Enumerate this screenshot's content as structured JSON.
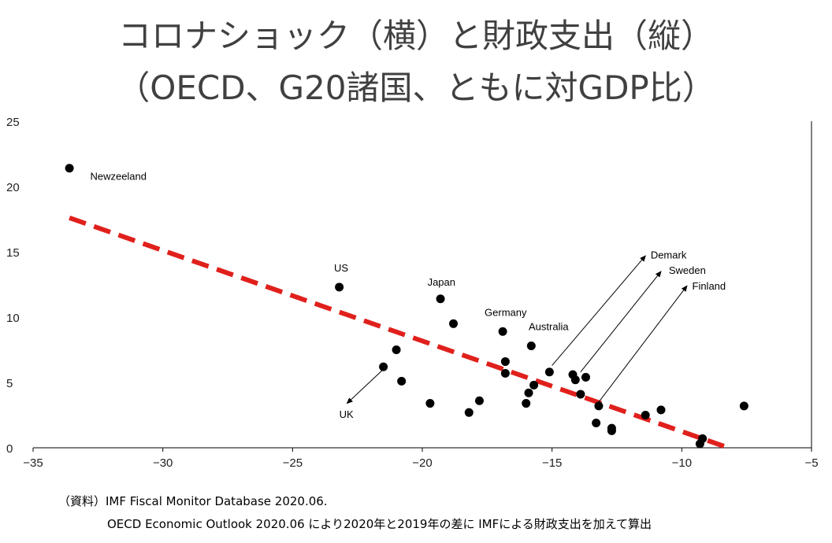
{
  "title": {
    "line1": "コロナショック（横）と財政支出（縦）",
    "line2": "（OECD、G20諸国、ともに対GDP比）"
  },
  "notes": {
    "line1": "（資料）IMF Fiscal Monitor Database 2020.06.",
    "line2": "OECD Economic Outlook 2020.06 により2020年と2019年の差に IMFによる財政支出を加えて算出"
  },
  "chart_data": {
    "type": "scatter",
    "xlim": [
      -35,
      -5
    ],
    "ylim": [
      0,
      25
    ],
    "x_ticks": [
      -35,
      -30,
      -25,
      -20,
      -15,
      -10,
      -5
    ],
    "y_ticks": [
      0,
      5,
      10,
      15,
      20,
      25
    ],
    "grid": false,
    "marker_color": "#000000",
    "trendline": {
      "style": "dashed",
      "color": "#e0201c",
      "start": [
        -33.6,
        17.6
      ],
      "end": [
        -8.2,
        0.0
      ]
    },
    "points": [
      {
        "x": -33.6,
        "y": 21.4
      },
      {
        "x": -23.2,
        "y": 12.3
      },
      {
        "x": -19.3,
        "y": 11.4
      },
      {
        "x": -18.8,
        "y": 9.5
      },
      {
        "x": -16.9,
        "y": 8.9
      },
      {
        "x": -15.8,
        "y": 7.8
      },
      {
        "x": -21.0,
        "y": 7.5
      },
      {
        "x": -21.5,
        "y": 6.2
      },
      {
        "x": -16.8,
        "y": 6.6
      },
      {
        "x": -16.8,
        "y": 5.7
      },
      {
        "x": -15.1,
        "y": 5.8
      },
      {
        "x": -20.8,
        "y": 5.1
      },
      {
        "x": -15.7,
        "y": 4.8
      },
      {
        "x": -15.9,
        "y": 4.2
      },
      {
        "x": -14.2,
        "y": 5.6
      },
      {
        "x": -14.1,
        "y": 5.2
      },
      {
        "x": -13.7,
        "y": 5.4
      },
      {
        "x": -13.9,
        "y": 4.1
      },
      {
        "x": -19.7,
        "y": 3.4
      },
      {
        "x": -17.8,
        "y": 3.6
      },
      {
        "x": -18.2,
        "y": 2.7
      },
      {
        "x": -16.0,
        "y": 3.4
      },
      {
        "x": -13.2,
        "y": 3.2
      },
      {
        "x": -11.4,
        "y": 2.5
      },
      {
        "x": -10.8,
        "y": 2.9
      },
      {
        "x": -13.3,
        "y": 1.9
      },
      {
        "x": -12.7,
        "y": 1.5
      },
      {
        "x": -12.7,
        "y": 1.3
      },
      {
        "x": -9.2,
        "y": 0.7
      },
      {
        "x": -9.3,
        "y": 0.3
      },
      {
        "x": -7.6,
        "y": 3.2
      }
    ],
    "annotations": [
      {
        "text": "Newzeeland",
        "x": -32.8,
        "y": 20.8
      },
      {
        "text": "US",
        "x": -23.4,
        "y": 13.8
      },
      {
        "text": "Japan",
        "x": -19.8,
        "y": 12.7
      },
      {
        "text": "Germany",
        "x": -17.6,
        "y": 10.4
      },
      {
        "text": "Australia",
        "x": -15.9,
        "y": 9.3
      },
      {
        "text": "UK",
        "x": -23.2,
        "y": 2.6
      },
      {
        "text": "Demark",
        "x": -11.2,
        "y": 14.8
      },
      {
        "text": "Sweden",
        "x": -10.5,
        "y": 13.6
      },
      {
        "text": "Finland",
        "x": -9.6,
        "y": 12.4
      }
    ],
    "arrows": [
      {
        "from": [
          -21.4,
          6.2
        ],
        "to": [
          -22.9,
          3.4
        ]
      },
      {
        "from": [
          -15.0,
          6.3
        ],
        "to": [
          -11.4,
          14.7
        ]
      },
      {
        "from": [
          -13.9,
          5.8
        ],
        "to": [
          -10.8,
          13.5
        ]
      },
      {
        "from": [
          -13.2,
          3.5
        ],
        "to": [
          -9.8,
          12.4
        ]
      }
    ]
  }
}
